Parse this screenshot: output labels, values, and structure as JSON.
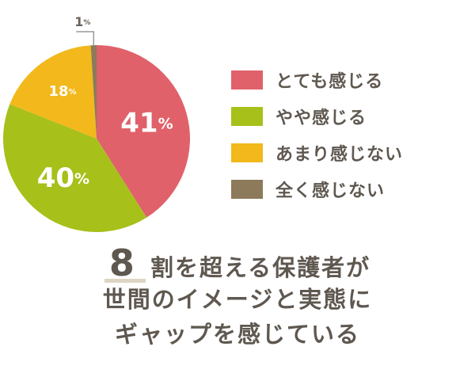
{
  "chart_data": {
    "type": "pie",
    "slices": [
      {
        "label": "とても感じる",
        "value": 41,
        "color": "#e0616a"
      },
      {
        "label": "やや感じる",
        "value": 40,
        "color": "#a7c01a"
      },
      {
        "label": "あまり感じない",
        "value": 18,
        "color": "#f2b81c"
      },
      {
        "label": "全く感じない",
        "value": 1,
        "color": "#8c7a5a"
      }
    ],
    "unit": "%",
    "legend_position": "right"
  },
  "caption": {
    "number": "8",
    "line1_rest": "割を超える保護者が",
    "line2": "世間のイメージと実態に",
    "line3": "ギャップを感じている"
  }
}
